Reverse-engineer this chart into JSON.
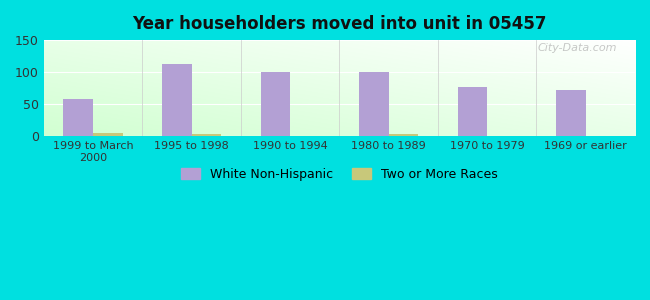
{
  "title": "Year householders moved into unit in 05457",
  "categories": [
    "1999 to March\n2000",
    "1995 to 1998",
    "1990 to 1994",
    "1980 to 1989",
    "1970 to 1979",
    "1969 or earlier"
  ],
  "white_non_hispanic": [
    58,
    113,
    101,
    100,
    77,
    72
  ],
  "two_or_more_races": [
    5,
    3,
    0,
    3,
    0,
    0
  ],
  "bar_color_white": "#b3a0d4",
  "bar_color_two": "#c8c87a",
  "bg_outer": "#00e0e0",
  "ylim": [
    0,
    150
  ],
  "yticks": [
    0,
    50,
    100,
    150
  ],
  "bar_width": 0.3,
  "legend_label_white": "White Non-Hispanic",
  "legend_label_two": "Two or More Races",
  "watermark": "City-Data.com"
}
